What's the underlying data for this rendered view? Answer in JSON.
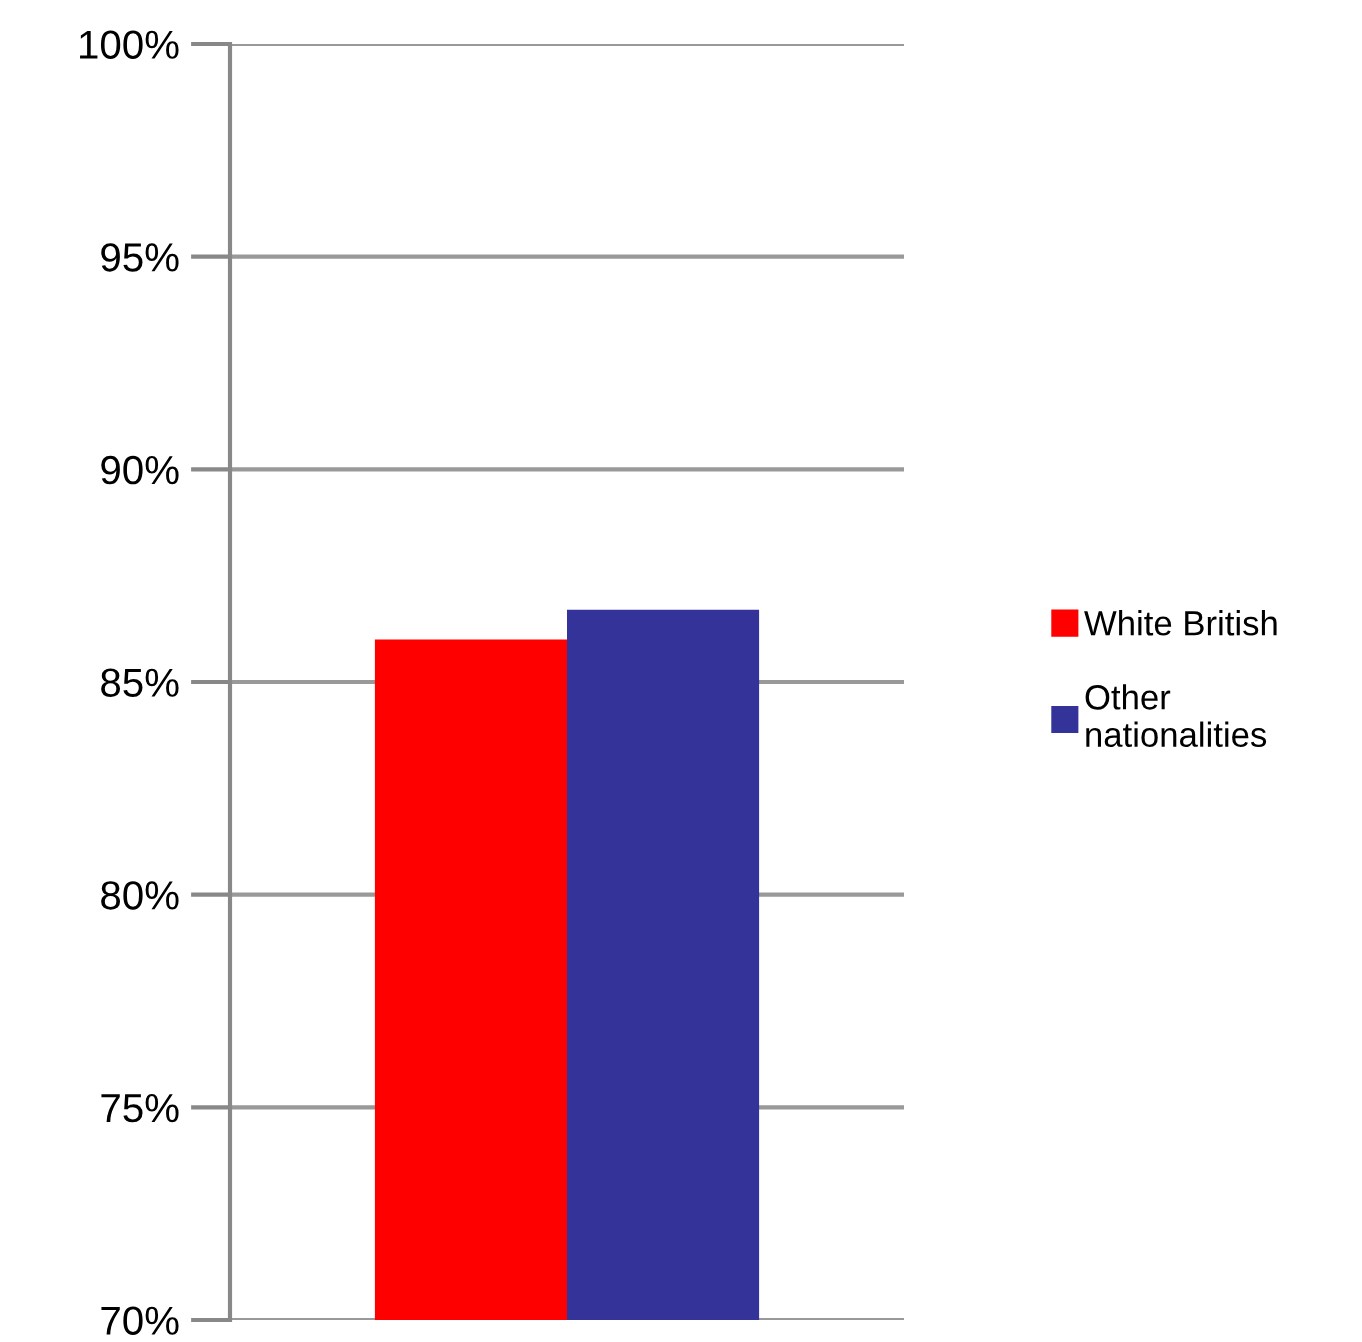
{
  "chart_data": {
    "type": "bar",
    "categories": [
      null
    ],
    "series": [
      {
        "name": "White British",
        "color": "#ff0000",
        "values": [
          86.0
        ]
      },
      {
        "name": "Other nationalities",
        "color": "#333399",
        "values": [
          86.7
        ]
      }
    ],
    "ylim": [
      70,
      100
    ],
    "yticks": [
      {
        "value": 70,
        "label": "70%"
      },
      {
        "value": 75,
        "label": "75%"
      },
      {
        "value": 80,
        "label": "80%"
      },
      {
        "value": 85,
        "label": "85%"
      },
      {
        "value": 90,
        "label": "90%"
      },
      {
        "value": 95,
        "label": "95%"
      },
      {
        "value": 100,
        "label": "100%"
      }
    ],
    "grid": "y",
    "legend": "right"
  }
}
